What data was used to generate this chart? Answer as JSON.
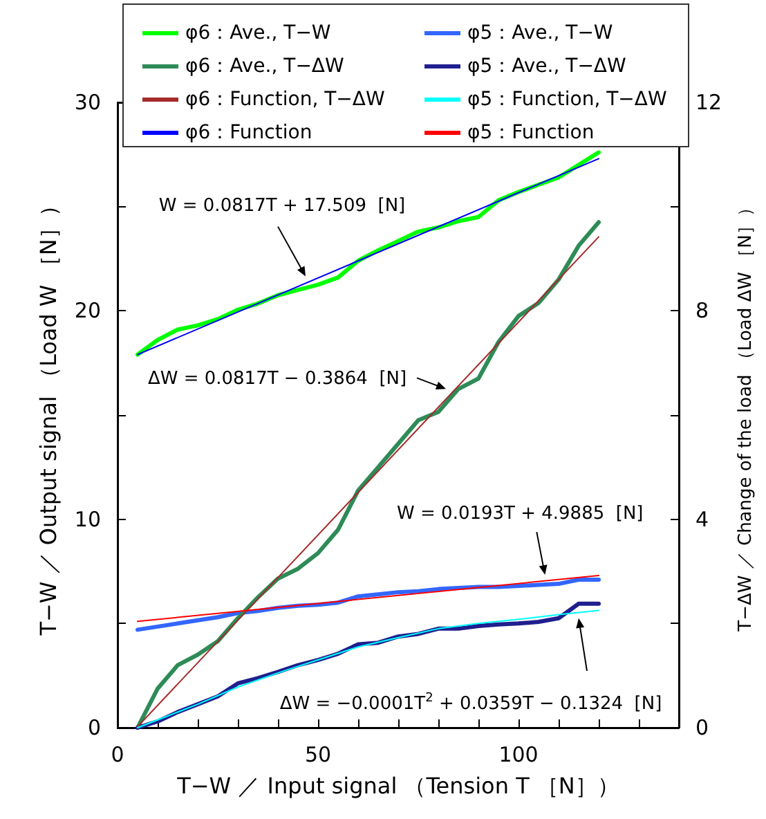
{
  "chart_data": {
    "type": "line",
    "xlabel": "T−W ／ Input signal （Tension T ［N］）",
    "ylabel": "T−W ／ Output signal （Load W ［N］）",
    "y2label": "T−ΔW ／ Change of the load （Load ΔW ［N］）",
    "x": [
      5,
      10,
      15,
      20,
      25,
      30,
      35,
      40,
      45,
      50,
      55,
      60,
      65,
      70,
      75,
      80,
      85,
      90,
      95,
      100,
      105,
      110,
      115,
      120
    ],
    "series": [
      {
        "name": "φ6：Ave., T−W",
        "color": "#00ff00",
        "values": [
          17.9,
          18.6,
          19.1,
          19.3,
          19.6,
          20.05,
          20.35,
          20.75,
          21.0,
          21.25,
          21.6,
          22.4,
          22.9,
          23.35,
          23.8,
          24.0,
          24.3,
          24.5,
          25.3,
          25.7,
          26.05,
          26.4,
          27.0,
          27.6
        ]
      },
      {
        "name": "φ5：Ave., T−W",
        "color": "#3366ff",
        "values": [
          4.7,
          4.85,
          5.0,
          5.15,
          5.3,
          5.5,
          5.6,
          5.75,
          5.85,
          5.9,
          6.0,
          6.3,
          6.4,
          6.5,
          6.55,
          6.65,
          6.7,
          6.75,
          6.75,
          6.8,
          6.85,
          6.9,
          7.1,
          7.1
        ]
      },
      {
        "name": "φ6：Ave., T−ΔW",
        "color": "#2e8b57",
        "axis": "y2",
        "values": [
          0,
          0.75,
          1.2,
          1.4,
          1.66,
          2.1,
          2.5,
          2.86,
          3.05,
          3.35,
          3.8,
          4.55,
          5.0,
          5.45,
          5.9,
          6.06,
          6.5,
          6.7,
          7.4,
          7.9,
          8.15,
          8.6,
          9.25,
          9.7
        ]
      },
      {
        "name": "φ5：Ave., T−ΔW",
        "color": "#1f1f8f",
        "axis": "y2",
        "values": [
          0,
          0.12,
          0.3,
          0.45,
          0.6,
          0.85,
          0.95,
          1.07,
          1.2,
          1.3,
          1.42,
          1.6,
          1.63,
          1.75,
          1.8,
          1.9,
          1.9,
          1.95,
          1.98,
          2.0,
          2.03,
          2.1,
          2.38,
          2.38
        ]
      },
      {
        "name": "φ6：Function, T−ΔW",
        "color": "#a52a2a",
        "axis": "y2",
        "x": [
          5,
          120
        ],
        "values": [
          0.02,
          9.42
        ]
      },
      {
        "name": "φ5：Function, T−ΔW",
        "color": "#00ffff",
        "axis": "y2",
        "x": [
          5,
          10,
          20,
          30,
          40,
          50,
          60,
          70,
          80,
          90,
          100,
          110,
          120
        ],
        "values": [
          0.0,
          0.15,
          0.45,
          0.78,
          1.05,
          1.3,
          1.55,
          1.73,
          1.9,
          2.0,
          2.08,
          2.17,
          2.25
        ]
      },
      {
        "name": "φ6：Function",
        "color": "#0000ff",
        "x": [
          5,
          120
        ],
        "values": [
          17.9,
          27.3
        ]
      },
      {
        "name": "φ5：Function",
        "color": "#ff0000",
        "x": [
          5,
          120
        ],
        "values": [
          5.1,
          7.3
        ]
      }
    ],
    "xlim": [
      0,
      140
    ],
    "xticks": [
      0,
      {
        "value": 10,
        "label": null
      },
      {
        "value": 20,
        "label": null
      },
      {
        "value": 30,
        "label": null
      },
      {
        "value": 40,
        "label": null
      },
      50,
      {
        "value": 60,
        "label": null
      },
      {
        "value": 70,
        "label": null
      },
      {
        "value": 80,
        "label": null
      },
      {
        "value": 90,
        "label": null
      },
      100,
      {
        "value": 110,
        "label": null
      },
      {
        "value": 120,
        "label": null
      },
      {
        "value": 130,
        "label": null
      },
      {
        "value": 140,
        "label": null
      }
    ],
    "ylim": [
      0,
      30
    ],
    "yticks": [
      0,
      {
        "value": 5,
        "label": null
      },
      10,
      {
        "value": 15,
        "label": null
      },
      20,
      {
        "value": 25,
        "label": null
      },
      30
    ],
    "y2lim": [
      0,
      12
    ],
    "y2ticks": [
      0,
      {
        "value": 2,
        "label": null
      },
      4,
      {
        "value": 6,
        "label": null
      },
      8,
      {
        "value": 10,
        "label": null
      },
      12
    ],
    "annotations": [
      {
        "text": "W = 0.0817T + 17.509  [N]",
        "x": 46.9,
        "y": 21.65
      },
      {
        "text": "ΔW = 0.0817T − 0.3864  [N]",
        "x": 81.9,
        "y": 16.25
      },
      {
        "text": "W = 0.0193T + 4.9885  [N]",
        "x": 106.6,
        "y": 7.33
      },
      {
        "text": "ΔW = −0.0001T$^{2}$ + 0.0359T − 0.1324  [N]",
        "x": 115,
        "y": 5.25
      }
    ],
    "grid": false,
    "legend": "top",
    "marker": "none",
    "line_style": "solid"
  }
}
